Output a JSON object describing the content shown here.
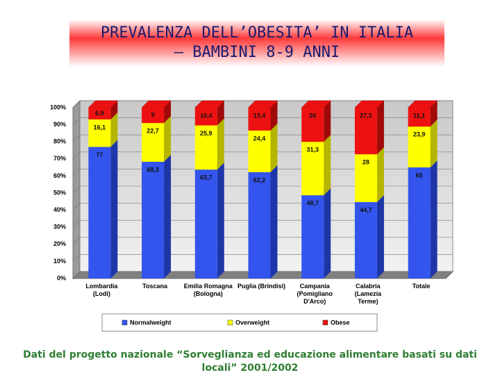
{
  "chart_data": {
    "type": "stacked_bar_3d",
    "title": "PREVALENZA DELL’OBESITA’ IN ITALIA – BAMBINI 8-9 ANNI",
    "footer": "Dati del progetto nazionale “Sorveglianza ed educazione alimentare basati su dati locali” 2001/2002",
    "categories": [
      "Lombardia\n(Lodi)",
      "Toscana",
      "Emilia Romagna\n(Bologna)",
      "Puglia (Brindisi)",
      "Campania\n(Pomigliano\nD'Arco)",
      "Calabria\n(Lamezia\nTerme)",
      "Totale"
    ],
    "series": [
      {
        "name": "Normalweight",
        "color": "#3355ee",
        "side": "#1f36a8",
        "values": [
          77,
          68.3,
          63.7,
          62.2,
          48.7,
          44.7,
          65
        ],
        "value_labels": [
          "77",
          "68,3",
          "63,7",
          "62,2",
          "48,7",
          "44,7",
          "65"
        ]
      },
      {
        "name": "Overweight",
        "color": "#ffff00",
        "side": "#b5b500",
        "values": [
          16.1,
          22.7,
          25.9,
          24.4,
          31.3,
          28,
          23.9
        ],
        "value_labels": [
          "16,1",
          "22,7",
          "25,9",
          "24,4",
          "31,3",
          "28",
          "23,9"
        ]
      },
      {
        "name": "Obese",
        "color": "#ee1111",
        "side": "#a00a0a",
        "values": [
          6.9,
          9,
          10.4,
          13.4,
          20,
          27.3,
          11.1
        ],
        "value_labels": [
          "6,9",
          "9",
          "10,4",
          "13,4",
          "20",
          "27,3",
          "11,1"
        ]
      }
    ],
    "ylim": [
      0,
      100
    ],
    "yticks": [
      {
        "value": 0,
        "label": "0%"
      },
      {
        "value": 10,
        "label": "10%"
      },
      {
        "value": 20,
        "label": "20%"
      },
      {
        "value": 30,
        "label": "30%"
      },
      {
        "value": 40,
        "label": "40%"
      },
      {
        "value": 50,
        "label": "50%"
      },
      {
        "value": 60,
        "label": "60%"
      },
      {
        "value": 70,
        "label": "70%"
      },
      {
        "value": 80,
        "label": "80%"
      },
      {
        "value": 90,
        "label": "90%"
      },
      {
        "value": 100,
        "label": "100%"
      }
    ],
    "grid": true
  }
}
